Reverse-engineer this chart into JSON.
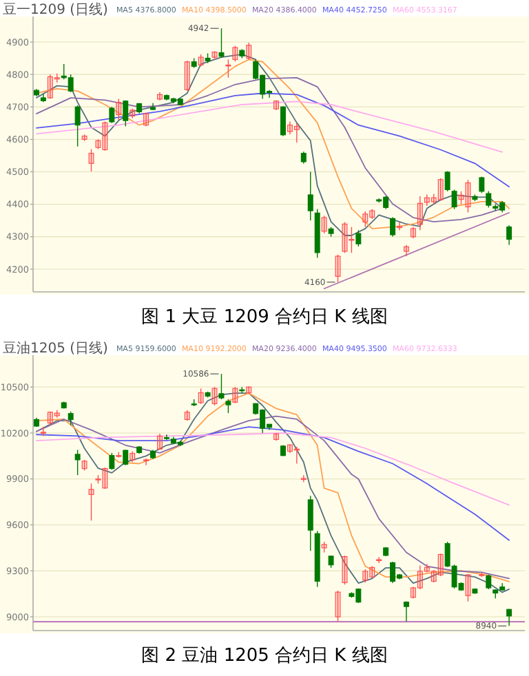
{
  "chart_data": [
    {
      "type": "candlestick",
      "title": "豆一1209 (日线)",
      "subtitle": "图 1 大豆 1209 合约日 K 线图",
      "grid": "y",
      "tick_labels": "y",
      "categories": [
        null,
        null,
        null,
        null,
        null,
        null,
        null,
        null,
        null,
        null,
        null,
        null,
        null,
        null,
        null,
        null,
        null,
        null,
        null,
        null,
        null,
        null,
        null,
        null,
        null,
        null,
        null,
        null,
        null,
        null,
        null,
        null,
        null,
        null,
        null,
        null,
        null,
        null,
        null,
        null,
        null,
        null,
        null,
        null,
        null,
        null,
        null,
        null,
        null,
        null,
        null,
        null,
        null,
        null,
        null,
        null,
        null,
        null,
        null,
        null,
        null,
        null,
        null,
        null,
        null,
        null,
        null,
        null,
        null,
        null
      ],
      "ylim": [
        4130,
        4970
      ],
      "yticks": [
        4200,
        4300,
        4400,
        4500,
        4600,
        4700,
        4800,
        4900
      ],
      "ohlc": [
        [
          4751,
          4755,
          4733,
          4737
        ],
        [
          4728,
          4740,
          4715,
          4719
        ],
        [
          4728,
          4800,
          4725,
          4793
        ],
        [
          4786,
          4803,
          4775,
          4790
        ],
        [
          4795,
          4832,
          4785,
          4790
        ],
        [
          4790,
          4800,
          4745,
          4749
        ],
        [
          4700,
          4705,
          4578,
          4644
        ],
        [
          4600,
          4615,
          4595,
          4610
        ],
        [
          4526,
          4570,
          4501,
          4557
        ],
        [
          4575,
          4600,
          4570,
          4596
        ],
        [
          4568,
          4655,
          4565,
          4651
        ],
        [
          4696,
          4700,
          4650,
          4654
        ],
        [
          4676,
          4725,
          4660,
          4714
        ],
        [
          4718,
          4720,
          4640,
          4658
        ],
        [
          4672,
          4695,
          4665,
          4690
        ],
        [
          4710,
          4712,
          4680,
          4685
        ],
        [
          4644,
          4682,
          4640,
          4679
        ],
        [
          4698,
          4712,
          4690,
          4692
        ],
        [
          4724,
          4745,
          4720,
          4738
        ],
        [
          4735,
          4738,
          4720,
          4724
        ],
        [
          4725,
          4728,
          4712,
          4717
        ],
        [
          4724,
          4726,
          4705,
          4707
        ],
        [
          4753,
          4842,
          4750,
          4839
        ],
        [
          4839,
          4850,
          4820,
          4825
        ],
        [
          4829,
          4862,
          4825,
          4853
        ],
        [
          4850,
          4865,
          4835,
          4842
        ],
        [
          4853,
          4872,
          4845,
          4869
        ],
        [
          4867,
          4942,
          4852,
          4856
        ],
        [
          4829,
          4846,
          4790,
          4829
        ],
        [
          4846,
          4888,
          4840,
          4883
        ],
        [
          4874,
          4878,
          4850,
          4857
        ],
        [
          4850,
          4898,
          4845,
          4890
        ],
        [
          4839,
          4845,
          4785,
          4788
        ],
        [
          4797,
          4800,
          4725,
          4739
        ],
        [
          4748,
          4752,
          4728,
          4744
        ],
        [
          4694,
          4720,
          4690,
          4718
        ],
        [
          4700,
          4702,
          4610,
          4614
        ],
        [
          4624,
          4655,
          4615,
          4644
        ],
        [
          4630,
          4650,
          4590,
          4640
        ],
        [
          4557,
          4562,
          4525,
          4531
        ],
        [
          4429,
          4500,
          4350,
          4380
        ],
        [
          4373,
          4385,
          4235,
          4251
        ],
        [
          4317,
          4365,
          4310,
          4359
        ],
        [
          4324,
          4330,
          4300,
          4310
        ],
        [
          4178,
          4245,
          4160,
          4240
        ],
        [
          4255,
          4345,
          4250,
          4339
        ],
        [
          4290,
          4330,
          4250,
          4292
        ],
        [
          4310,
          4320,
          4270,
          4278
        ],
        [
          4345,
          4378,
          4330,
          4370
        ],
        [
          4360,
          4385,
          4355,
          4380
        ],
        [
          4414,
          4418,
          4405,
          4410
        ],
        [
          4422,
          4425,
          4385,
          4390
        ],
        [
          4356,
          4360,
          4300,
          4306
        ],
        [
          4328,
          4345,
          4320,
          4332
        ],
        [
          4255,
          4275,
          4240,
          4269
        ],
        [
          4300,
          4330,
          4295,
          4325
        ],
        [
          4338,
          4425,
          4320,
          4403
        ],
        [
          4406,
          4430,
          4395,
          4420
        ],
        [
          4408,
          4432,
          4400,
          4420
        ],
        [
          4414,
          4480,
          4410,
          4476
        ],
        [
          4499,
          4502,
          4440,
          4445
        ],
        [
          4440,
          4445,
          4385,
          4392
        ],
        [
          4415,
          4440,
          4400,
          4428
        ],
        [
          4392,
          4475,
          4375,
          4466
        ],
        [
          4424,
          4430,
          4410,
          4415
        ],
        [
          4482,
          4485,
          4435,
          4440
        ],
        [
          4433,
          4440,
          4390,
          4397
        ],
        [
          4393,
          4400,
          4380,
          4388
        ],
        [
          4405,
          4410,
          4375,
          4382
        ],
        [
          4330,
          4335,
          4275,
          4292
        ]
      ],
      "colors": [
        "#007a00",
        "#007a00",
        "#ff5050",
        "#ff5050",
        "#007a00",
        "#007a00",
        "#007a00",
        "#ff5050",
        "#ff5050",
        "#ff5050",
        "#ff5050",
        "#007a00",
        "#ff5050",
        "#007a00",
        "#ff5050",
        "#007a00",
        "#ff5050",
        "#007a00",
        "#ff5050",
        "#007a00",
        "#007a00",
        "#007a00",
        "#ff5050",
        "#007a00",
        "#ff5050",
        "#007a00",
        "#ff5050",
        "#007a00",
        "#ff5050",
        "#ff5050",
        "#007a00",
        "#ff5050",
        "#007a00",
        "#007a00",
        "#007a00",
        "#ff5050",
        "#007a00",
        "#ff5050",
        "#ff5050",
        "#007a00",
        "#007a00",
        "#007a00",
        "#ff5050",
        "#007a00",
        "#ff5050",
        "#ff5050",
        "#ff5050",
        "#007a00",
        "#ff5050",
        "#ff5050",
        "#007a00",
        "#007a00",
        "#007a00",
        "#ff5050",
        "#ff5050",
        "#ff5050",
        "#ff5050",
        "#ff5050",
        "#ff5050",
        "#ff5050",
        "#007a00",
        "#007a00",
        "#ff5050",
        "#ff5050",
        "#007a00",
        "#007a00",
        "#007a00",
        "#007a00",
        "#007a00",
        "#007a00"
      ],
      "series": [
        {
          "type": "line",
          "name": "MA5 4376.8000",
          "color": "#56707e",
          "values": [
            4728,
            null,
            null,
            4765,
            null,
            4762,
            4714,
            null,
            4637,
            null,
            4610,
            null,
            4658,
            null,
            4686,
            null,
            null,
            4700,
            null,
            null,
            4714,
            null,
            4742,
            null,
            4832,
            null,
            null,
            4853,
            null,
            null,
            4862,
            null,
            4846,
            null,
            4790,
            null,
            4721,
            null,
            4651,
            null,
            4596,
            4457,
            null,
            4346,
            null,
            4304,
            4304,
            null,
            4325,
            null,
            4367,
            null,
            4353,
            null,
            4339,
            null,
            4332,
            4387,
            null,
            4414,
            null,
            4429,
            null,
            null,
            4422,
            null,
            4422,
            null,
            4387,
            null
          ]
        },
        {
          "type": "line",
          "name": "MA10 4398.5000",
          "color": "#ffa050",
          "values": [
            4742,
            null,
            null,
            4756,
            null,
            null,
            4749,
            null,
            null,
            null,
            4707,
            null,
            null,
            null,
            null,
            4644,
            null,
            4658,
            null,
            null,
            null,
            4700,
            null,
            null,
            null,
            4762,
            null,
            null,
            null,
            4825,
            null,
            4846,
            null,
            4839,
            null,
            null,
            null,
            4756,
            null,
            null,
            null,
            4651,
            4596,
            null,
            4485,
            null,
            4387,
            null,
            null,
            4325,
            null,
            null,
            null,
            4332,
            null,
            4339,
            null,
            null,
            4360,
            null,
            null,
            4394,
            null,
            null,
            null,
            4408,
            null,
            null,
            4408,
            4387
          ]
        },
        {
          "type": "line",
          "name": "MA20 4386.4000",
          "color": "#8a6aa8",
          "values": [
            4679,
            null,
            null,
            null,
            null,
            4728,
            null,
            null,
            null,
            null,
            4721,
            null,
            null,
            null,
            null,
            4700,
            null,
            null,
            null,
            null,
            null,
            4707,
            null,
            null,
            null,
            4735,
            null,
            null,
            null,
            4769,
            null,
            null,
            null,
            4787,
            null,
            null,
            null,
            null,
            4790,
            null,
            null,
            4762,
            null,
            null,
            null,
            4637,
            null,
            null,
            4512,
            null,
            null,
            null,
            4401,
            null,
            null,
            4359,
            null,
            null,
            4346,
            null,
            null,
            null,
            4353,
            null,
            null,
            4367,
            null,
            null,
            4387,
            null
          ]
        },
        {
          "type": "line",
          "name": "MA40 4452.7250",
          "color": "#5a5aee",
          "values": [
            4635,
            null,
            null,
            null,
            null,
            null,
            4649,
            null,
            null,
            null,
            null,
            null,
            4668,
            null,
            null,
            null,
            null,
            null,
            4686,
            null,
            null,
            null,
            null,
            4707,
            null,
            null,
            null,
            null,
            null,
            4735,
            null,
            null,
            null,
            4742,
            null,
            null,
            null,
            null,
            4738,
            null,
            null,
            null,
            4704,
            null,
            null,
            null,
            null,
            4644,
            null,
            null,
            null,
            null,
            null,
            4610,
            null,
            null,
            null,
            null,
            null,
            4568,
            null,
            null,
            null,
            null,
            4526,
            null,
            null,
            null,
            null,
            4454
          ]
        },
        {
          "type": "line",
          "name": "MA60 4553.3167",
          "color": "#ffaaee",
          "values": [
            4617,
            null,
            null,
            null,
            null,
            null,
            null,
            null,
            null,
            null,
            null,
            null,
            4644,
            null,
            null,
            null,
            null,
            null,
            null,
            null,
            null,
            null,
            4679,
            null,
            null,
            null,
            null,
            null,
            null,
            null,
            4707,
            null,
            null,
            null,
            null,
            null,
            null,
            null,
            4717,
            null,
            null,
            null,
            null,
            4707,
            null,
            null,
            null,
            null,
            4679,
            null,
            null,
            null,
            null,
            null,
            null,
            null,
            null,
            null,
            4624,
            null,
            null,
            null,
            null,
            null,
            null,
            null,
            null,
            null,
            4561,
            null
          ]
        },
        {
          "type": "line",
          "color": "#b070b0",
          "values": [
            null,
            null,
            null,
            null,
            null,
            null,
            null,
            null,
            null,
            null,
            null,
            null,
            null,
            null,
            null,
            null,
            null,
            null,
            null,
            null,
            null,
            null,
            null,
            null,
            null,
            null,
            null,
            null,
            null,
            null,
            null,
            null,
            null,
            null,
            null,
            null,
            null,
            null,
            null,
            null,
            null,
            null,
            4140,
            null,
            null,
            null,
            null,
            null,
            null,
            null,
            null,
            null,
            null,
            null,
            null,
            null,
            null,
            null,
            null,
            null,
            null,
            null,
            null,
            null,
            null,
            null,
            null,
            null,
            null,
            4374
          ]
        }
      ],
      "annotations": [
        "4942",
        "4160"
      ]
    },
    {
      "type": "candlestick",
      "title": "豆油1205 (日线)",
      "subtitle": "图 2 豆油 1205 合约日 K 线图",
      "grid": "y",
      "tick_labels": "y",
      "categories": [
        null,
        null,
        null,
        null,
        null,
        null,
        null,
        null,
        null,
        null,
        null,
        null,
        null,
        null,
        null,
        null,
        null,
        null,
        null,
        null,
        null,
        null,
        null,
        null,
        null,
        null,
        null,
        null,
        null,
        null,
        null,
        null,
        null,
        null,
        null,
        null,
        null,
        null,
        null,
        null,
        null,
        null,
        null,
        null,
        null,
        null,
        null,
        null,
        null,
        null,
        null,
        null,
        null,
        null,
        null,
        null,
        null,
        null,
        null,
        null,
        null,
        null,
        null,
        null,
        null,
        null,
        null,
        null,
        null,
        null
      ],
      "ylim": [
        8910,
        10690
      ],
      "yticks": [
        9000,
        9300,
        9600,
        9900,
        10200,
        10500
      ],
      "ohlc": [
        [
          10288,
          10300,
          10240,
          10245
        ],
        [
          10200,
          10240,
          10180,
          10205
        ],
        [
          10265,
          10340,
          10250,
          10336
        ],
        [
          10313,
          10350,
          10300,
          10330
        ],
        [
          10398,
          10405,
          10360,
          10364
        ],
        [
          10327,
          10340,
          10250,
          10288
        ],
        [
          10061,
          10090,
          9925,
          10025
        ],
        [
          9968,
          10025,
          9955,
          10016
        ],
        [
          9798,
          9870,
          9628,
          9832
        ],
        [
          9895,
          9925,
          9870,
          9900
        ],
        [
          9841,
          9975,
          9835,
          9968
        ],
        [
          10053,
          10070,
          9960,
          9968
        ],
        [
          10050,
          10075,
          10040,
          10053
        ],
        [
          10087,
          10090,
          9990,
          9996
        ],
        [
          10025,
          10080,
          10010,
          10067
        ],
        [
          10109,
          10115,
          10065,
          10072
        ],
        [
          10022,
          10035,
          9990,
          10025
        ],
        [
          10081,
          10090,
          10030,
          10039
        ],
        [
          10095,
          10195,
          10090,
          10180
        ],
        [
          10170,
          10190,
          10155,
          10165
        ],
        [
          10160,
          10175,
          10130,
          10135
        ],
        [
          10140,
          10150,
          10115,
          10124
        ],
        [
          10288,
          10350,
          10280,
          10336
        ],
        [
          10390,
          10420,
          10375,
          10387
        ],
        [
          10398,
          10490,
          10390,
          10463
        ],
        [
          10463,
          10470,
          10432,
          10441
        ],
        [
          10392,
          10500,
          10380,
          10491
        ],
        [
          10457,
          10586,
          10420,
          10429
        ],
        [
          10407,
          10420,
          10330,
          10384
        ],
        [
          10401,
          10500,
          10395,
          10491
        ],
        [
          10482,
          10500,
          10460,
          10478
        ],
        [
          10463,
          10505,
          10455,
          10500
        ],
        [
          10392,
          10395,
          10320,
          10327
        ],
        [
          10350,
          10355,
          10200,
          10231
        ],
        [
          10257,
          10260,
          10220,
          10237
        ],
        [
          10158,
          10200,
          10150,
          10194
        ],
        [
          10115,
          10120,
          10050,
          10053
        ],
        [
          10081,
          10125,
          10070,
          10123
        ],
        [
          10092,
          10110,
          10000,
          10095
        ],
        [
          9900,
          9925,
          9880,
          9903
        ],
        [
          9764,
          9790,
          9430,
          9566
        ],
        [
          9543,
          9560,
          9195,
          9232
        ],
        [
          9450,
          9490,
          9420,
          9472
        ],
        [
          9396,
          9400,
          9320,
          9339
        ],
        [
          9000,
          9170,
          8970,
          9161
        ],
        [
          9223,
          9400,
          9210,
          9393
        ],
        [
          9152,
          9160,
          9125,
          9133
        ],
        [
          9181,
          9185,
          9090,
          9096
        ],
        [
          9240,
          9310,
          9225,
          9297
        ],
        [
          9260,
          9330,
          9255,
          9322
        ],
        [
          9370,
          9390,
          9350,
          9373
        ],
        [
          9450,
          9455,
          9395,
          9401
        ],
        [
          9353,
          9360,
          9220,
          9232
        ],
        [
          9274,
          9280,
          9245,
          9252
        ],
        [
          9096,
          9100,
          8970,
          9067
        ],
        [
          9127,
          9195,
          9120,
          9189
        ],
        [
          9189,
          9335,
          9180,
          9297
        ],
        [
          9297,
          9345,
          9290,
          9322
        ],
        [
          9232,
          9305,
          9225,
          9297
        ],
        [
          9274,
          9412,
          9265,
          9407
        ],
        [
          9478,
          9490,
          9325,
          9331
        ],
        [
          9331,
          9340,
          9185,
          9195
        ],
        [
          9218,
          9225,
          9170,
          9175
        ],
        [
          9138,
          9280,
          9100,
          9274
        ],
        [
          9181,
          9185,
          9150,
          9155
        ],
        [
          9272,
          9290,
          9260,
          9275
        ],
        [
          9268,
          9275,
          9180,
          9189
        ],
        [
          9175,
          9180,
          9120,
          9155
        ],
        [
          9195,
          9220,
          9170,
          9175
        ],
        [
          9048,
          9052,
          8940,
          9005
        ]
      ],
      "colors": [
        "#007a00",
        "#ff5050",
        "#ff5050",
        "#ff5050",
        "#007a00",
        "#007a00",
        "#007a00",
        "#ff5050",
        "#ff5050",
        "#ff5050",
        "#ff5050",
        "#007a00",
        "#ff5050",
        "#007a00",
        "#ff5050",
        "#007a00",
        "#ff5050",
        "#007a00",
        "#ff5050",
        "#007a00",
        "#007a00",
        "#007a00",
        "#ff5050",
        "#007a00",
        "#ff5050",
        "#007a00",
        "#ff5050",
        "#007a00",
        "#007a00",
        "#ff5050",
        "#007a00",
        "#ff5050",
        "#007a00",
        "#007a00",
        "#007a00",
        "#ff5050",
        "#007a00",
        "#ff5050",
        "#ff5050",
        "#ff5050",
        "#007a00",
        "#007a00",
        "#ff5050",
        "#007a00",
        "#ff5050",
        "#ff5050",
        "#007a00",
        "#007a00",
        "#ff5050",
        "#ff5050",
        "#ff5050",
        "#007a00",
        "#007a00",
        "#007a00",
        "#007a00",
        "#ff5050",
        "#ff5050",
        "#ff5050",
        "#ff5050",
        "#ff5050",
        "#007a00",
        "#007a00",
        "#007a00",
        "#ff5050",
        "#007a00",
        "#ff5050",
        "#007a00",
        "#007a00",
        "#007a00",
        "#007a00"
      ],
      "series": [
        {
          "type": "line",
          "name": "MA5 9159.6000",
          "color": "#56707e",
          "values": [
            10210,
            null,
            null,
            10280,
            null,
            10280,
            null,
            10100,
            null,
            9970,
            null,
            9940,
            null,
            10010,
            null,
            null,
            10050,
            null,
            null,
            10120,
            null,
            10140,
            null,
            10290,
            null,
            10410,
            null,
            10450,
            null,
            10460,
            null,
            10460,
            null,
            10380,
            null,
            10270,
            null,
            10170,
            null,
            10010,
            9840,
            9760,
            null,
            9530,
            null,
            9350,
            null,
            9220,
            null,
            9250,
            null,
            9320,
            null,
            9320,
            null,
            9220,
            null,
            9250,
            null,
            9290,
            null,
            9280,
            null,
            null,
            9260,
            null,
            9220,
            null,
            9160,
            9180
          ]
        },
        {
          "type": "line",
          "name": "MA10 9192.2000",
          "color": "#ffa050",
          "values": [
            10280,
            null,
            null,
            null,
            10290,
            null,
            null,
            10180,
            null,
            null,
            null,
            null,
            10010,
            null,
            null,
            10000,
            null,
            null,
            10050,
            null,
            null,
            10120,
            null,
            null,
            null,
            10310,
            null,
            null,
            10410,
            null,
            null,
            10460,
            null,
            null,
            null,
            10360,
            null,
            null,
            10320,
            null,
            null,
            10120,
            9840,
            null,
            9810,
            null,
            9530,
            null,
            9330,
            null,
            null,
            9260,
            null,
            null,
            9260,
            null,
            null,
            null,
            9290,
            null,
            null,
            null,
            9300,
            null,
            null,
            null,
            9270,
            null,
            null,
            9230
          ]
        },
        {
          "type": "line",
          "name": "MA20 9236.4000",
          "color": "#8a6aa8",
          "values": [
            10210,
            null,
            null,
            null,
            10290,
            null,
            null,
            null,
            10220,
            null,
            null,
            null,
            null,
            10120,
            null,
            null,
            null,
            null,
            10070,
            null,
            null,
            null,
            10140,
            null,
            null,
            null,
            null,
            10220,
            null,
            null,
            null,
            10280,
            null,
            null,
            null,
            10310,
            null,
            null,
            10290,
            null,
            null,
            null,
            10150,
            null,
            null,
            null,
            9930,
            9900,
            null,
            null,
            9640,
            null,
            null,
            null,
            9420,
            null,
            null,
            9330,
            null,
            null,
            null,
            9300,
            null,
            null,
            null,
            9290,
            null,
            null,
            null,
            9250
          ]
        },
        {
          "type": "line",
          "name": "MA40 9495.3500",
          "color": "#5a5aee",
          "values": [
            10190,
            null,
            null,
            null,
            null,
            null,
            10180,
            null,
            null,
            null,
            null,
            null,
            10150,
            null,
            null,
            null,
            null,
            null,
            null,
            10150,
            null,
            null,
            null,
            null,
            null,
            10190,
            null,
            null,
            null,
            null,
            null,
            10240,
            null,
            null,
            null,
            null,
            10220,
            null,
            null,
            null,
            null,
            null,
            10170,
            null,
            null,
            null,
            null,
            10080,
            null,
            null,
            null,
            null,
            10000,
            null,
            null,
            null,
            null,
            9870,
            9840,
            null,
            null,
            null,
            null,
            null,
            9670,
            null,
            null,
            null,
            null,
            9500
          ]
        },
        {
          "type": "line",
          "name": "MA60 9732.6333",
          "color": "#ffaaee",
          "values": [
            10150,
            null,
            null,
            null,
            null,
            null,
            null,
            null,
            null,
            10170,
            null,
            null,
            null,
            null,
            null,
            null,
            null,
            null,
            null,
            10180,
            null,
            null,
            null,
            null,
            null,
            null,
            null,
            null,
            null,
            10190,
            null,
            null,
            null,
            null,
            null,
            null,
            10200,
            null,
            null,
            null,
            null,
            null,
            null,
            10170,
            null,
            null,
            null,
            null,
            10100,
            null,
            null,
            null,
            null,
            null,
            null,
            9980,
            null,
            null,
            null,
            null,
            null,
            9870,
            null,
            null,
            null,
            null,
            null,
            null,
            null,
            9730
          ]
        }
      ],
      "ref_lines": [
        {
          "axis": "y",
          "value": 8968,
          "color": "#c080c0"
        }
      ],
      "annotations": [
        "10586",
        "8940"
      ]
    }
  ]
}
